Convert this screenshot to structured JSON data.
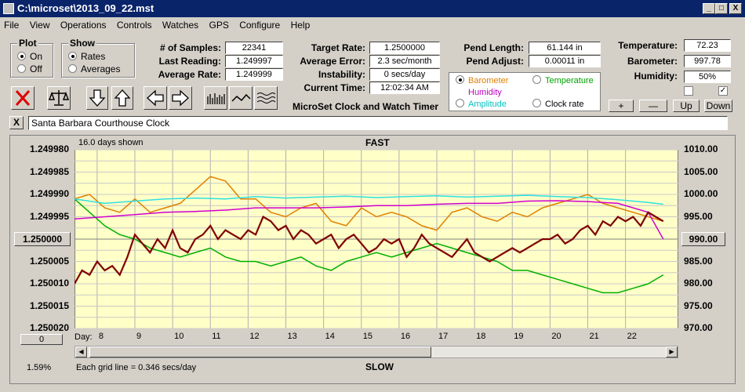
{
  "window": {
    "title": "C:\\microset\\2013_09_22.mst",
    "minimize": "_",
    "restore": "□",
    "close": "X"
  },
  "menu": [
    "File",
    "View",
    "Operations",
    "Controls",
    "Watches",
    "GPS",
    "Configure",
    "Help"
  ],
  "plot_group": {
    "title": "Plot",
    "options": [
      "On",
      "Off"
    ],
    "selected": 0
  },
  "show_group": {
    "title": "Show",
    "options": [
      "Rates",
      "Averages"
    ],
    "selected": 0
  },
  "stats_left": {
    "samples_label": "# of Samples:",
    "samples": "22341",
    "last_reading_label": "Last Reading:",
    "last_reading": "1.249997",
    "avg_rate_label": "Average Rate:",
    "avg_rate": "1.249999"
  },
  "stats_mid": {
    "target_rate_label": "Target Rate:",
    "target_rate": "1.2500000",
    "avg_error_label": "Average Error:",
    "avg_error": "2.3 sec/month",
    "instability_label": "Instability:",
    "instability": "0 secs/day",
    "current_time_label": "Current Time:",
    "current_time": "12:02:34 AM"
  },
  "pend": {
    "length_label": "Pend Length:",
    "length": "61.144 in",
    "adjust_label": "Pend Adjust:",
    "adjust": "0.00011 in"
  },
  "env": {
    "temp_label": "Temperature:",
    "temp": "72.23",
    "baro_label": "Barometer:",
    "baro": "997.78",
    "hum_label": "Humidity:",
    "hum": "50%",
    "chk1": "",
    "chk2": "✓"
  },
  "series_select": {
    "options": [
      {
        "label": "Barometer",
        "color": "#e08000",
        "selected": true
      },
      {
        "label": "Temperature",
        "color": "#00a000",
        "selected": false
      },
      {
        "label": "Humidity",
        "color": "#c000c0",
        "selected": false
      },
      {
        "label": "Clock rate",
        "color": "#000000",
        "selected": false
      },
      {
        "label": "Amplitude",
        "color": "#00c0c0",
        "selected": false
      }
    ]
  },
  "scale_buttons": [
    "+",
    "—",
    "Up",
    "Down"
  ],
  "app_label": "MicroSet Clock and Watch Timer",
  "clock_name": "Santa Barbara Courthouse Clock",
  "close_x": "X",
  "chart_header": {
    "days_shown": "16.0 days shown",
    "top": "FAST",
    "bottom": "SLOW",
    "grid_note": "Each grid line = 0.346 secs/day",
    "percent": "1.59%",
    "day_label": "Day:",
    "left_btn": "0",
    "left_ref": "1.250000",
    "right_ref": "990.00"
  },
  "chart_data": {
    "type": "line",
    "left_axis_ticks": [
      "1.249980",
      "1.249985",
      "1.249990",
      "1.249995",
      "1.250000",
      "1.250005",
      "1.250010",
      "1.250015",
      "1.250020"
    ],
    "right_axis_ticks": [
      "1010.00",
      "1005.00",
      "1000.00",
      "995.00",
      "990.00",
      "985.00",
      "980.00",
      "975.00",
      "970.00"
    ],
    "x_ticks": [
      "8",
      "9",
      "10",
      "11",
      "12",
      "13",
      "14",
      "15",
      "16",
      "17",
      "18",
      "19",
      "20",
      "21",
      "22"
    ],
    "x_range": [
      7.4,
      23.4
    ],
    "right_range": [
      970,
      1010
    ],
    "series": [
      {
        "name": "Barometer",
        "color": "#e08000",
        "x": [
          7.4,
          7.8,
          8.2,
          8.6,
          9.0,
          9.4,
          9.8,
          10.2,
          10.6,
          11.0,
          11.4,
          11.8,
          12.2,
          12.6,
          13.0,
          13.4,
          13.8,
          14.2,
          14.6,
          15.0,
          15.4,
          15.8,
          16.2,
          16.6,
          17.0,
          17.4,
          17.8,
          18.2,
          18.6,
          19.0,
          19.4,
          19.8,
          20.2,
          20.6,
          21.0,
          21.4,
          21.8,
          22.2,
          22.6,
          23.0
        ],
        "y": [
          999,
          1000,
          997,
          996,
          999,
          996,
          997,
          998,
          1001,
          1004,
          1003,
          999,
          999,
          996,
          995,
          997,
          998,
          994,
          993,
          997,
          995,
          996,
          995,
          993,
          992,
          996,
          997,
          995,
          994,
          996,
          995,
          997,
          998,
          999,
          1000,
          998,
          997,
          996,
          995,
          994
        ]
      },
      {
        "name": "Temperature",
        "color": "#00b000",
        "x": [
          7.4,
          7.8,
          8.2,
          8.6,
          9.0,
          9.4,
          9.8,
          10.2,
          10.6,
          11.0,
          11.4,
          11.8,
          12.2,
          12.6,
          13.0,
          13.4,
          13.8,
          14.2,
          14.6,
          15.0,
          15.4,
          15.8,
          16.2,
          16.6,
          17.0,
          17.4,
          17.8,
          18.2,
          18.6,
          19.0,
          19.4,
          19.8,
          20.2,
          20.6,
          21.0,
          21.4,
          21.8,
          22.2,
          22.6,
          23.0
        ],
        "y": [
          999,
          996,
          993,
          991,
          990,
          988,
          987,
          986,
          987,
          988,
          986,
          985,
          985,
          984,
          985,
          986,
          984,
          983,
          985,
          986,
          987,
          986,
          987,
          988,
          989,
          988,
          987,
          986,
          985,
          983,
          983,
          982,
          981,
          980,
          979,
          978,
          978,
          979,
          980,
          982
        ]
      },
      {
        "name": "Humidity",
        "color": "#d000d0",
        "x": [
          7.4,
          8.2,
          9.0,
          9.8,
          10.6,
          11.4,
          12.2,
          13.0,
          13.8,
          14.6,
          15.4,
          16.2,
          17.0,
          17.8,
          18.6,
          19.4,
          20.2,
          21.0,
          21.8,
          22.6,
          23.0
        ],
        "y": [
          994.5,
          995,
          995.5,
          996,
          996.2,
          996.5,
          997,
          997,
          997,
          997.2,
          997.5,
          997.5,
          997.8,
          998,
          998,
          998.5,
          998.6,
          998.4,
          998,
          996,
          990
        ]
      },
      {
        "name": "Amplitude",
        "color": "#30e0e0",
        "x": [
          7.4,
          8.2,
          9.0,
          9.8,
          10.6,
          11.4,
          12.2,
          13.0,
          13.8,
          14.6,
          15.4,
          16.2,
          17.0,
          17.8,
          18.6,
          19.4,
          20.2,
          21.0,
          21.8,
          22.6,
          23.0
        ],
        "y": [
          999,
          998,
          998.5,
          999,
          999.2,
          999,
          999.5,
          999.2,
          999.4,
          999.6,
          999.3,
          999.5,
          999.7,
          999.4,
          999.6,
          999.8,
          999.5,
          999.3,
          998.8,
          998.2,
          997.8
        ]
      },
      {
        "name": "Clock rate",
        "color": "#800000",
        "x": [
          7.4,
          7.6,
          7.8,
          8.0,
          8.2,
          8.4,
          8.6,
          8.8,
          9.0,
          9.2,
          9.4,
          9.6,
          9.8,
          10.0,
          10.2,
          10.4,
          10.6,
          10.8,
          11.0,
          11.2,
          11.4,
          11.6,
          11.8,
          12.0,
          12.2,
          12.4,
          12.6,
          12.8,
          13.0,
          13.2,
          13.4,
          13.6,
          13.8,
          14.0,
          14.2,
          14.4,
          14.6,
          14.8,
          15.0,
          15.2,
          15.4,
          15.6,
          15.8,
          16.0,
          16.2,
          16.4,
          16.6,
          16.8,
          17.0,
          17.2,
          17.4,
          17.6,
          17.8,
          18.0,
          18.2,
          18.4,
          18.6,
          18.8,
          19.0,
          19.2,
          19.4,
          19.6,
          19.8,
          20.0,
          20.2,
          20.4,
          20.6,
          20.8,
          21.0,
          21.2,
          21.4,
          21.6,
          21.8,
          22.0,
          22.2,
          22.4,
          22.6,
          22.8,
          23.0
        ],
        "y": [
          980,
          983,
          982,
          985,
          983,
          984,
          982,
          986,
          991,
          989,
          987,
          990,
          988,
          992,
          988,
          987,
          990,
          991,
          993,
          990,
          992,
          991,
          990,
          992,
          991,
          995,
          994,
          992,
          993,
          990,
          992,
          991,
          989,
          990,
          991,
          988,
          990,
          991,
          989,
          987,
          988,
          990,
          989,
          990,
          986,
          988,
          991,
          989,
          988,
          987,
          986,
          988,
          990,
          987,
          986,
          985,
          986,
          987,
          988,
          987,
          988,
          989,
          990,
          990,
          991,
          989,
          990,
          992,
          993,
          991,
          994,
          993,
          995,
          994,
          995,
          993,
          996,
          995,
          994
        ]
      }
    ]
  }
}
